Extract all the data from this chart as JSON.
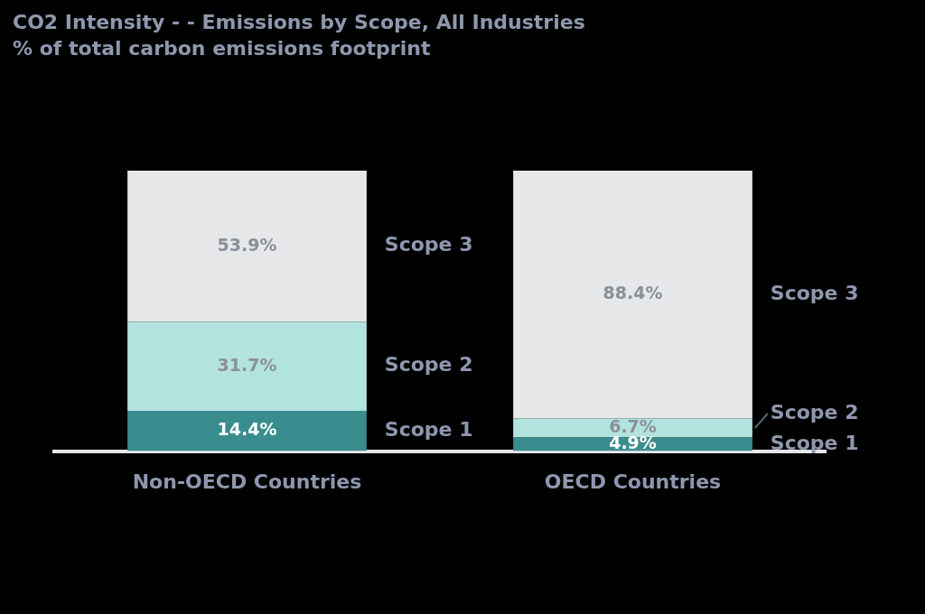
{
  "chart_data": {
    "type": "bar",
    "stacked": true,
    "title": "CO2 Intensity - - Emissions by Scope, All Industries",
    "subtitle": "% of total carbon emissions footprint",
    "categories": [
      "Non-OECD Countries",
      "OECD Countries"
    ],
    "legend": false,
    "series": [
      {
        "name": "Scope 1",
        "color": "#3a8d8f",
        "values": [
          14.4,
          4.9
        ],
        "value_labels": [
          "14.4%",
          "4.9%"
        ]
      },
      {
        "name": "Scope 2",
        "color": "#b3e3de",
        "values": [
          31.7,
          6.7
        ],
        "value_labels": [
          "31.7%",
          "6.7%"
        ]
      },
      {
        "name": "Scope 3",
        "color": "#e6e7e9",
        "values": [
          53.9,
          88.4
        ],
        "value_labels": [
          "53.9%",
          "88.4%"
        ]
      }
    ]
  }
}
